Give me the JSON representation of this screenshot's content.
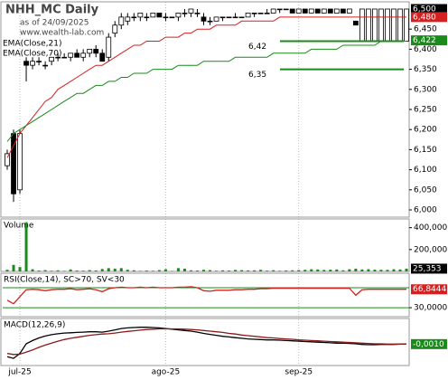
{
  "chart_data": [
    {
      "type": "candlestick",
      "title": "NHH_MC Daily",
      "subtitle": "as of 24/09/2025",
      "watermark": "www.wealth-lab.com",
      "categories": [
        null,
        null,
        "jul-25",
        null,
        null,
        null,
        null,
        null,
        null,
        null,
        null,
        null,
        null,
        null,
        null,
        null,
        null,
        null,
        null,
        null,
        null,
        null,
        null,
        null,
        null,
        "ago-25",
        null,
        null,
        null,
        null,
        null,
        null,
        null,
        null,
        null,
        null,
        null,
        null,
        null,
        null,
        null,
        null,
        null,
        null,
        null,
        null,
        "sep-25",
        null,
        null,
        null,
        null,
        null,
        null,
        null,
        null,
        null,
        null,
        null,
        null,
        null,
        null,
        null,
        null,
        null
      ],
      "open": [
        6.11,
        6.19,
        6.05,
        6.37,
        6.36,
        6.37,
        6.36,
        6.37,
        6.38,
        6.38,
        6.38,
        6.39,
        6.38,
        6.39,
        6.4,
        6.39,
        6.38,
        6.44,
        6.46,
        6.47,
        6.48,
        6.48,
        6.48,
        6.48,
        6.49,
        6.48,
        6.48,
        6.48,
        6.49,
        6.49,
        6.49,
        6.48,
        6.47,
        6.47,
        6.48,
        6.48,
        6.48,
        6.48,
        6.48,
        6.49,
        6.49,
        6.49,
        6.49,
        6.5,
        6.5,
        6.5,
        6.49,
        6.5,
        6.49,
        6.5,
        6.49,
        6.5,
        6.49,
        6.5,
        6.49,
        6.47,
        6.42,
        6.42,
        6.42,
        6.42,
        6.42,
        6.42,
        6.42,
        6.42
      ],
      "high": [
        6.15,
        6.2,
        6.2,
        6.38,
        6.38,
        6.38,
        6.37,
        6.38,
        6.39,
        6.39,
        6.39,
        6.4,
        6.4,
        6.4,
        6.41,
        6.4,
        6.44,
        6.47,
        6.49,
        6.49,
        6.49,
        6.49,
        6.49,
        6.49,
        6.49,
        6.49,
        6.48,
        6.49,
        6.5,
        6.5,
        6.5,
        6.49,
        6.48,
        6.48,
        6.48,
        6.48,
        6.49,
        6.48,
        6.49,
        6.49,
        6.49,
        6.5,
        6.5,
        6.5,
        6.5,
        6.5,
        6.5,
        6.5,
        6.5,
        6.5,
        6.5,
        6.5,
        6.5,
        6.5,
        6.5,
        6.47,
        6.5,
        6.5,
        6.5,
        6.5,
        6.5,
        6.5,
        6.5,
        6.5
      ],
      "low": [
        6.1,
        6.02,
        6.04,
        6.32,
        6.35,
        6.36,
        6.35,
        6.36,
        6.37,
        6.38,
        6.37,
        6.38,
        6.37,
        6.38,
        6.38,
        6.37,
        6.37,
        6.43,
        6.45,
        6.46,
        6.47,
        6.47,
        6.47,
        6.48,
        6.48,
        6.47,
        6.48,
        6.47,
        6.48,
        6.48,
        6.48,
        6.46,
        6.46,
        6.47,
        6.47,
        6.48,
        6.48,
        6.48,
        6.48,
        6.48,
        6.49,
        6.49,
        6.49,
        6.49,
        6.5,
        6.49,
        6.49,
        6.49,
        6.49,
        6.49,
        6.49,
        6.49,
        6.49,
        6.49,
        6.49,
        6.46,
        6.42,
        6.42,
        6.42,
        6.42,
        6.42,
        6.42,
        6.42,
        6.42
      ],
      "close": [
        6.14,
        6.04,
        6.19,
        6.36,
        6.37,
        6.37,
        6.36,
        6.38,
        6.38,
        6.38,
        6.39,
        6.38,
        6.39,
        6.4,
        6.39,
        6.37,
        6.43,
        6.46,
        6.48,
        6.48,
        6.48,
        6.49,
        6.48,
        6.49,
        6.48,
        6.48,
        6.48,
        6.49,
        6.49,
        6.5,
        6.49,
        6.47,
        6.47,
        6.48,
        6.48,
        6.48,
        6.48,
        6.48,
        6.49,
        6.49,
        6.49,
        6.49,
        6.5,
        6.5,
        6.5,
        6.49,
        6.5,
        6.49,
        6.5,
        6.49,
        6.5,
        6.49,
        6.5,
        6.49,
        6.5,
        6.46,
        6.5,
        6.5,
        6.5,
        6.5,
        6.5,
        6.5,
        6.5,
        6.5
      ],
      "series": [
        {
          "name": "EMA(Close,21)",
          "color": "#d42020",
          "values": [
            6.13,
            6.16,
            6.19,
            6.21,
            6.23,
            6.25,
            6.27,
            6.28,
            6.3,
            6.31,
            6.32,
            6.33,
            6.34,
            6.35,
            6.36,
            6.36,
            6.37,
            6.38,
            6.39,
            6.4,
            6.41,
            6.41,
            6.42,
            6.42,
            6.42,
            6.43,
            6.43,
            6.43,
            6.44,
            6.44,
            6.45,
            6.45,
            6.45,
            6.46,
            6.46,
            6.46,
            6.46,
            6.47,
            6.47,
            6.47,
            6.47,
            6.47,
            6.47,
            6.48,
            6.48,
            6.48,
            6.48,
            6.48,
            6.48,
            6.48,
            6.48,
            6.48,
            6.48,
            6.48,
            6.48,
            6.48,
            6.48,
            6.48,
            6.48,
            6.48,
            6.48,
            6.48,
            6.48,
            6.48
          ]
        },
        {
          "name": "EMA(Close,70)",
          "color": "#1a8a1a",
          "values": [
            6.17,
            6.19,
            6.2,
            6.21,
            6.22,
            6.23,
            6.24,
            6.25,
            6.26,
            6.27,
            6.28,
            6.29,
            6.29,
            6.3,
            6.31,
            6.31,
            6.32,
            6.32,
            6.33,
            6.33,
            6.34,
            6.34,
            6.34,
            6.35,
            6.35,
            6.35,
            6.35,
            6.36,
            6.36,
            6.36,
            6.36,
            6.37,
            6.37,
            6.37,
            6.37,
            6.37,
            6.38,
            6.38,
            6.38,
            6.38,
            6.38,
            6.38,
            6.39,
            6.39,
            6.39,
            6.39,
            6.39,
            6.39,
            6.4,
            6.4,
            6.4,
            6.4,
            6.4,
            6.41,
            6.41,
            6.41,
            6.41,
            6.41,
            6.41,
            6.42,
            6.42,
            6.42,
            6.42,
            6.42
          ]
        }
      ],
      "ylim": [
        5.982,
        6.518
      ],
      "yticks": [
        {
          "value": 6.0,
          "label": "6,000"
        },
        {
          "value": 6.05,
          "label": "6,050"
        },
        {
          "value": 6.1,
          "label": "6,100"
        },
        {
          "value": 6.15,
          "label": "6,150"
        },
        {
          "value": 6.2,
          "label": "6,200"
        },
        {
          "value": 6.25,
          "label": "6,250"
        },
        {
          "value": 6.3,
          "label": "6,300"
        },
        {
          "value": 6.35,
          "label": "6,350"
        },
        {
          "value": 6.4,
          "label": "6,400"
        },
        {
          "value": 6.45,
          "label": "6,450"
        }
      ],
      "annotations": [
        {
          "value": 6.42,
          "label": "6,42",
          "color": "#1a8a1a"
        },
        {
          "value": 6.35,
          "label": "6,35",
          "color": "#1a8a1a"
        }
      ],
      "last_labels": [
        {
          "value": 6.5,
          "label": "6,500",
          "color": "#000000"
        },
        {
          "value": 6.48,
          "label": "6,480",
          "color": "#d42020"
        },
        {
          "value": 6.422,
          "label": "6,422",
          "color": "#1a8a1a"
        }
      ]
    },
    {
      "type": "bar",
      "title": "Volume",
      "color": "#1a8a1a",
      "values": [
        15000,
        60000,
        40000,
        450000,
        20000,
        8000,
        12000,
        6000,
        10000,
        5000,
        18000,
        8000,
        7000,
        12000,
        9000,
        22000,
        30000,
        25000,
        30000,
        15000,
        10000,
        5000,
        8000,
        6000,
        12000,
        20000,
        4000,
        30000,
        25000,
        10000,
        8000,
        15000,
        12000,
        6000,
        10000,
        8000,
        14000,
        12000,
        9000,
        10000,
        15000,
        7000,
        11000,
        6000,
        9000,
        10000,
        12000,
        15000,
        20000,
        18000,
        14000,
        16000,
        18000,
        10000,
        20000,
        25000,
        18000,
        20000,
        16000,
        15000,
        14000,
        20000,
        18000,
        25353
      ],
      "ylim": [
        0,
        480000
      ],
      "yticks": [
        {
          "value": 200000,
          "label": "200,000"
        },
        {
          "value": 400000,
          "label": "400,000"
        }
      ],
      "last_labels": [
        {
          "value": 25353,
          "label": "25,353",
          "color": "#000000"
        }
      ]
    },
    {
      "type": "line",
      "title": "RSI(Close,14), SC>70, SV<30",
      "series": [
        {
          "name": "RSI",
          "color": "#d42020",
          "values": [
            45,
            38,
            52,
            66,
            67,
            66,
            64,
            66,
            67,
            67,
            68,
            66,
            67,
            68,
            66,
            62,
            68,
            70,
            71,
            70,
            70,
            71,
            70,
            71,
            70,
            70,
            70,
            71,
            71,
            72,
            70,
            64,
            63,
            65,
            65,
            65,
            66,
            66,
            67,
            67,
            68,
            68,
            69,
            69,
            69,
            69,
            69,
            69,
            69,
            69,
            69,
            69,
            69,
            69,
            69,
            55,
            66,
            67,
            67,
            67,
            67,
            67,
            67,
            66.8444
          ]
        }
      ],
      "ylim": [
        12,
        99
      ],
      "yticks": [
        {
          "value": 30,
          "label": "30,0000"
        }
      ],
      "reference_lines": [
        70,
        30
      ],
      "last_labels": [
        {
          "value": 66.8444,
          "label": "66,8444",
          "color": "#d42020"
        }
      ]
    },
    {
      "type": "line",
      "title": "MACD(12,26,9)",
      "series": [
        {
          "name": "MACD",
          "color": "#000000",
          "values": [
            -0.04,
            -0.045,
            -0.03,
            0.0,
            0.01,
            0.018,
            0.024,
            0.028,
            0.031,
            0.033,
            0.034,
            0.035,
            0.036,
            0.037,
            0.037,
            0.036,
            0.039,
            0.043,
            0.047,
            0.049,
            0.05,
            0.051,
            0.051,
            0.05,
            0.049,
            0.047,
            0.045,
            0.043,
            0.041,
            0.039,
            0.036,
            0.032,
            0.029,
            0.026,
            0.023,
            0.021,
            0.019,
            0.017,
            0.015,
            0.014,
            0.013,
            0.012,
            0.012,
            0.011,
            0.01,
            0.009,
            0.008,
            0.007,
            0.006,
            0.005,
            0.004,
            0.003,
            0.002,
            0.002,
            0.001,
            0.0,
            -0.002,
            -0.003,
            -0.003,
            -0.002,
            -0.002,
            -0.002,
            -0.001,
            -0.001
          ]
        },
        {
          "name": "Signal",
          "color": "#8b1a1a",
          "values": [
            -0.03,
            -0.033,
            -0.032,
            -0.026,
            -0.019,
            -0.011,
            -0.004,
            0.002,
            0.008,
            0.013,
            0.017,
            0.02,
            0.023,
            0.026,
            0.028,
            0.03,
            0.031,
            0.033,
            0.036,
            0.038,
            0.04,
            0.042,
            0.044,
            0.045,
            0.046,
            0.046,
            0.046,
            0.046,
            0.045,
            0.044,
            0.043,
            0.041,
            0.039,
            0.037,
            0.035,
            0.032,
            0.03,
            0.027,
            0.025,
            0.023,
            0.021,
            0.019,
            0.018,
            0.016,
            0.015,
            0.014,
            0.012,
            0.011,
            0.01,
            0.009,
            0.008,
            0.007,
            0.006,
            0.005,
            0.004,
            0.003,
            0.002,
            0.001,
            0.0,
            0.0,
            -0.001,
            -0.001,
            -0.001,
            -0.001
          ]
        }
      ],
      "ylim": [
        -0.067,
        0.078
      ],
      "last_labels": [
        {
          "value": -0.001,
          "label": "-0,0010",
          "color": "#1a8a1a"
        }
      ]
    }
  ]
}
